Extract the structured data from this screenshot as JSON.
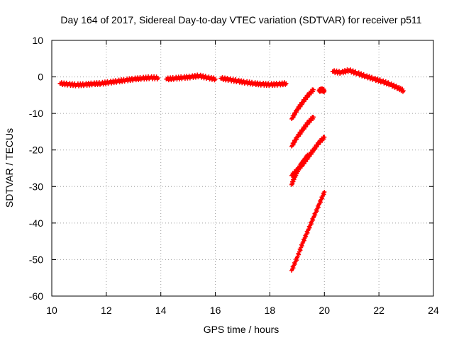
{
  "chart_data": {
    "type": "scatter",
    "title": "Day 164 of 2017, Sidereal Day-to-day VTEC variation (SDTVAR) for receiver p511",
    "xlabel": "GPS time / hours",
    "ylabel": "SDTVAR / TECUs",
    "xlim": [
      10,
      24
    ],
    "ylim": [
      -60,
      10
    ],
    "xticks": [
      10,
      12,
      14,
      16,
      18,
      20,
      22,
      24
    ],
    "yticks": [
      10,
      0,
      -10,
      -20,
      -30,
      -40,
      -50,
      -60
    ],
    "grid": true,
    "legend": "none",
    "marker": "plus",
    "color": "#ff0000",
    "series": [
      {
        "x": [
          10.3,
          10.6,
          10.9,
          11.2,
          11.5,
          11.8,
          12.1,
          12.4,
          12.7,
          13.0,
          13.3,
          13.6,
          13.9
        ],
        "y": [
          -1.8,
          -2.0,
          -2.2,
          -2.1,
          -1.9,
          -1.8,
          -1.5,
          -1.2,
          -0.9,
          -0.6,
          -0.4,
          -0.2,
          -0.3
        ]
      },
      {
        "x": [
          14.2,
          14.5,
          14.8,
          15.1,
          15.4,
          15.7,
          16.0
        ],
        "y": [
          -0.6,
          -0.4,
          -0.2,
          0.0,
          0.3,
          -0.2,
          -0.6
        ]
      },
      {
        "x": [
          16.2,
          16.5,
          16.8,
          17.1,
          17.4,
          17.7,
          18.0,
          18.3,
          18.6
        ],
        "y": [
          -0.4,
          -0.7,
          -1.1,
          -1.5,
          -1.8,
          -2.0,
          -2.1,
          -2.0,
          -1.8
        ]
      },
      {
        "x": [
          18.8,
          19.0,
          19.2,
          19.4,
          19.6
        ],
        "y": [
          -11.5,
          -9.0,
          -7.0,
          -5.0,
          -3.5
        ]
      },
      {
        "x": [
          19.8,
          19.9,
          20.0
        ],
        "y": [
          -3.8,
          -3.5,
          -3.8
        ]
      },
      {
        "x": [
          18.8,
          19.0,
          19.2,
          19.4,
          19.6
        ],
        "y": [
          -19.0,
          -16.5,
          -14.5,
          -12.5,
          -11.0
        ]
      },
      {
        "x": [
          18.8,
          19.0,
          19.2,
          19.4,
          19.6,
          19.8,
          20.0
        ],
        "y": [
          -27.0,
          -25.5,
          -24.0,
          -22.0,
          -20.0,
          -18.0,
          -16.5
        ]
      },
      {
        "x": [
          18.8,
          18.9,
          19.0,
          19.1,
          19.2,
          19.3,
          19.4
        ],
        "y": [
          -29.5,
          -27.5,
          -26.0,
          -24.5,
          -23.5,
          -22.5,
          -21.5
        ]
      },
      {
        "x": [
          18.8,
          19.0,
          19.2,
          19.4,
          19.6,
          19.8,
          20.0
        ],
        "y": [
          -53.0,
          -49.5,
          -45.5,
          -42.0,
          -38.5,
          -35.0,
          -31.5
        ]
      },
      {
        "x": [
          20.3,
          20.6,
          20.9,
          21.2,
          21.5,
          21.8,
          22.1,
          22.4,
          22.7,
          22.9
        ],
        "y": [
          1.5,
          1.2,
          1.8,
          1.0,
          0.2,
          -0.5,
          -1.2,
          -2.0,
          -3.0,
          -3.8
        ]
      }
    ]
  }
}
